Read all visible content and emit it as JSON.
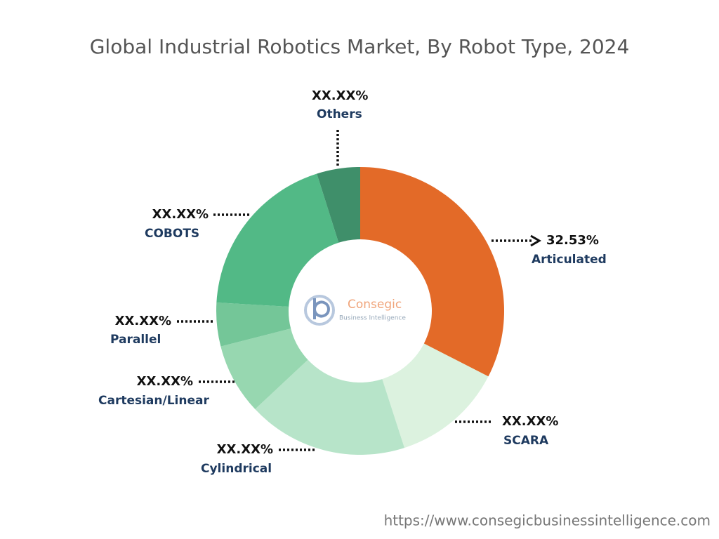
{
  "chart_data": {
    "type": "donut",
    "title": "Global Industrial Robotics Market, By Robot Type, 2024",
    "categories": [
      "Articulated",
      "SCARA",
      "Cylindrical",
      "Cartesian/Linear",
      "Parallel",
      "COBOTS",
      "Others"
    ],
    "values": [
      32.53,
      12.5,
      18,
      8,
      4.9,
      19.2,
      4.87
    ],
    "value_labels": [
      "32.53%",
      "XX.XX%",
      "XX.XX%",
      "XX.XX%",
      "XX.XX%",
      "XX.XX%",
      "XX.XX%"
    ],
    "colors": [
      "#e36a28",
      "#dcf2df",
      "#b7e4c9",
      "#97d7b0",
      "#74c698",
      "#52b986",
      "#3f8f6a"
    ]
  },
  "logo": {
    "name": "Consegic",
    "tagline": "Business Intelligence"
  },
  "source": "https://www.consegicbusinessintelligence.com"
}
